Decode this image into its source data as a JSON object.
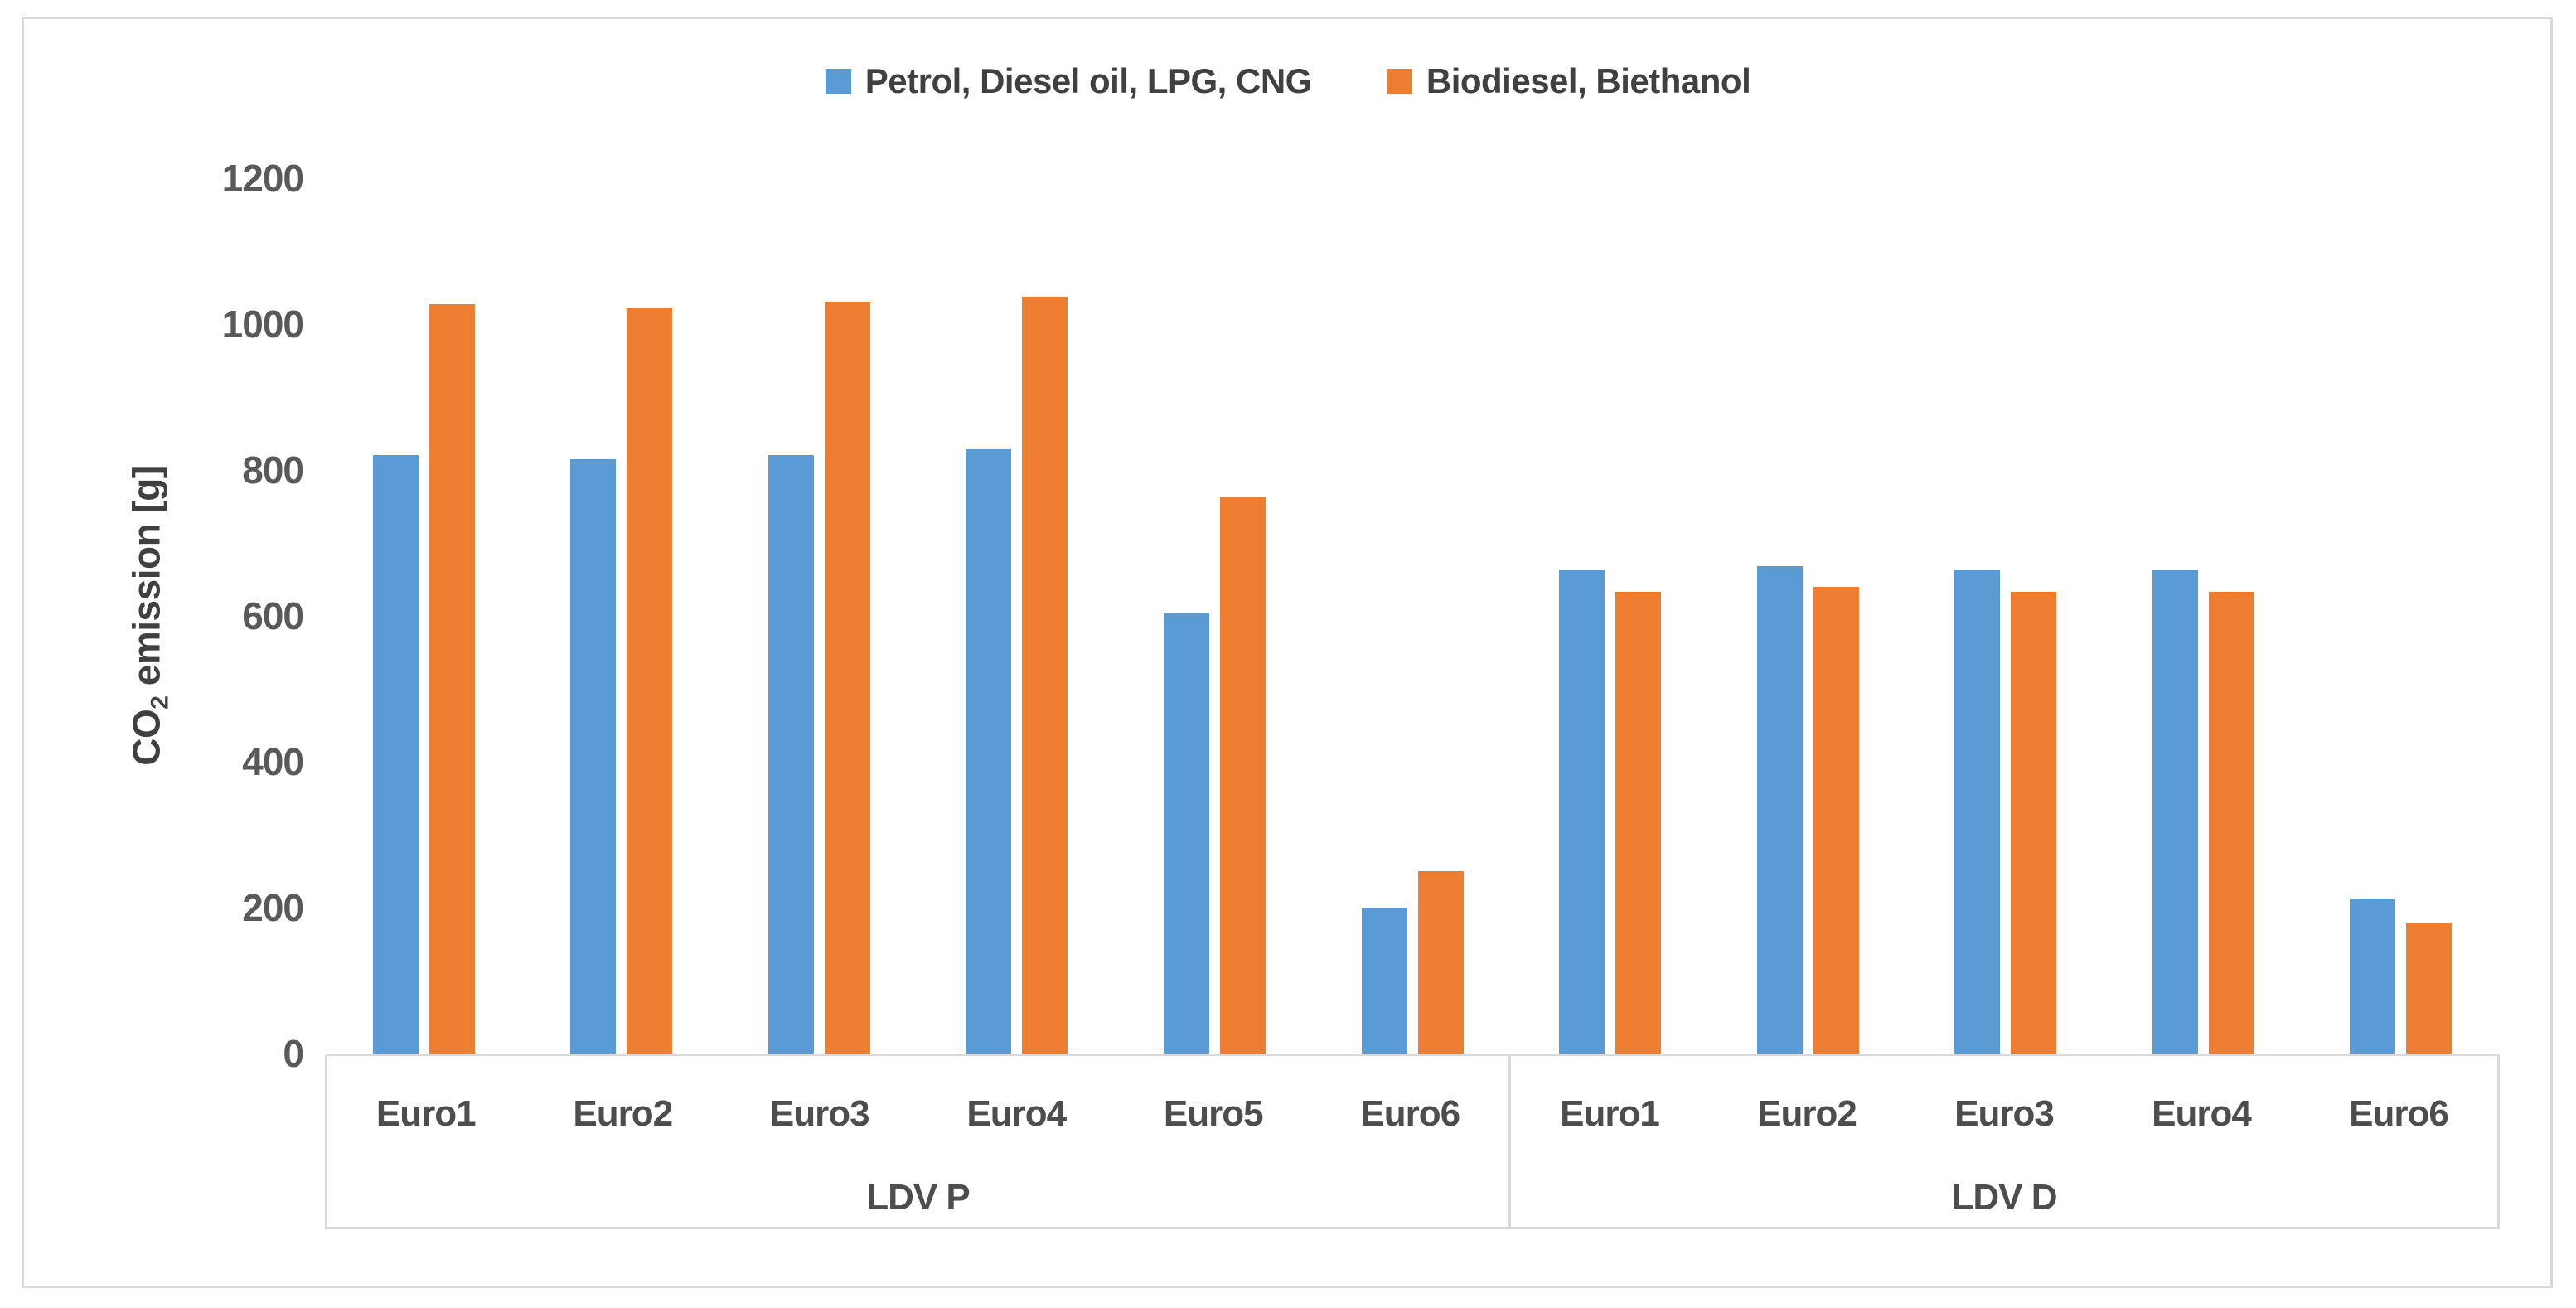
{
  "chart_data": {
    "type": "bar",
    "title": "",
    "ylabel_pre": "CO",
    "ylabel_sub": "2",
    "ylabel_post": " emission [g]",
    "ylim": [
      0,
      1200
    ],
    "yticks": [
      "0",
      "200",
      "400",
      "600",
      "800",
      "1000",
      "1200"
    ],
    "grid": false,
    "legend_position": "top-center",
    "legend": [
      {
        "label": "Petrol, Diesel oil, LPG, CNG",
        "color": "#5B9BD5"
      },
      {
        "label": "Biodiesel, Biethanol",
        "color": "#ED7D31"
      }
    ],
    "groups": [
      {
        "label": "LDV P",
        "categories": [
          "Euro1",
          "Euro2",
          "Euro3",
          "Euro4",
          "Euro5",
          "Euro6"
        ],
        "series": [
          {
            "name": "Petrol, Diesel oil, LPG, CNG",
            "color": "#5B9BD5",
            "values": [
              820,
              815,
              820,
              828,
              605,
              200
            ]
          },
          {
            "name": "Biodiesel, Biethanol",
            "color": "#ED7D31",
            "values": [
              1027,
              1022,
              1031,
              1038,
              762,
              250
            ]
          }
        ]
      },
      {
        "label": "LDV D",
        "categories": [
          "Euro1",
          "Euro2",
          "Euro3",
          "Euro4",
          "Euro6"
        ],
        "series": [
          {
            "name": "Petrol, Diesel oil, LPG, CNG",
            "color": "#5B9BD5",
            "values": [
              663,
              668,
              663,
              663,
              212
            ]
          },
          {
            "name": "Biodiesel, Biethanol",
            "color": "#ED7D31",
            "values": [
              633,
              640,
              633,
              633,
              180
            ]
          }
        ]
      }
    ],
    "colors": {
      "axis_line": "#D9D9D9",
      "tick_text": "#595959",
      "label_text": "#404040",
      "background": "#FFFFFF"
    }
  }
}
